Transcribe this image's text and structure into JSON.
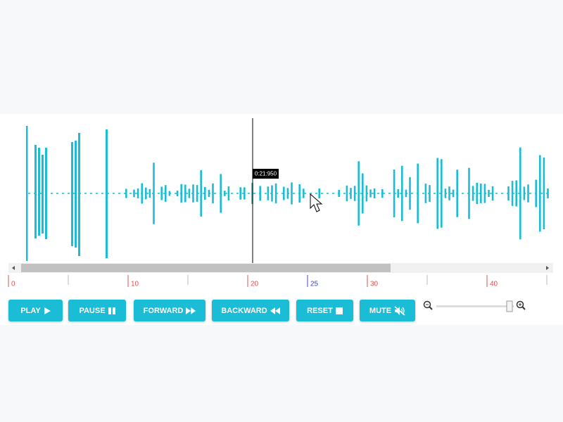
{
  "timeline": {
    "labels": [
      0,
      10,
      20,
      30,
      40
    ],
    "marker": 25
  },
  "playhead": {
    "time": "0:21:950"
  },
  "buttons": [
    "PLAY",
    "PAUSE",
    "FORWARD",
    "BACKWARD",
    "RESET",
    "MUTE"
  ]
}
